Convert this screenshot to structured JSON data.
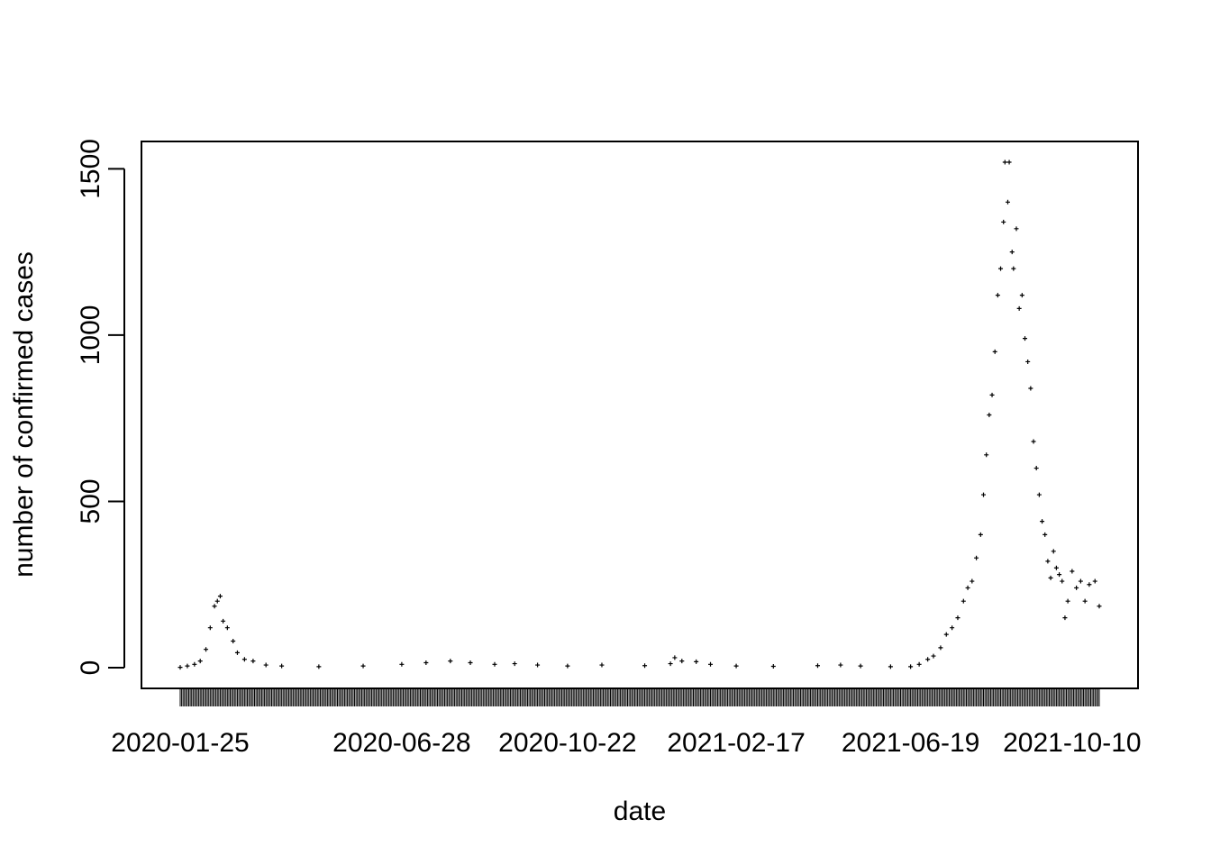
{
  "chart_data": {
    "type": "scatter",
    "title": "",
    "xlabel": "date",
    "ylabel": "number of confirmed cases",
    "x_tick_labels": [
      "2020-01-25",
      "2020-06-28",
      "2020-10-22",
      "2021-02-17",
      "2021-06-19",
      "2021-10-10"
    ],
    "y_ticks": [
      0,
      500,
      1000,
      1500
    ],
    "xlim": [
      "2020-01-25",
      "2021-10-29"
    ],
    "ylim": [
      0,
      1520
    ],
    "grid": false,
    "legend": "none",
    "marker": "+",
    "color": "#000000",
    "series": [
      {
        "points": [
          [
            "2020-01-25",
            1
          ],
          [
            "2020-01-30",
            5
          ],
          [
            "2020-02-04",
            10
          ],
          [
            "2020-02-08",
            20
          ],
          [
            "2020-02-12",
            55
          ],
          [
            "2020-02-15",
            120
          ],
          [
            "2020-02-18",
            185
          ],
          [
            "2020-02-20",
            200
          ],
          [
            "2020-02-22",
            215
          ],
          [
            "2020-02-24",
            140
          ],
          [
            "2020-02-27",
            120
          ],
          [
            "2020-03-02",
            80
          ],
          [
            "2020-03-05",
            45
          ],
          [
            "2020-03-10",
            25
          ],
          [
            "2020-03-16",
            20
          ],
          [
            "2020-03-25",
            8
          ],
          [
            "2020-04-05",
            5
          ],
          [
            "2020-05-01",
            3
          ],
          [
            "2020-06-01",
            5
          ],
          [
            "2020-06-28",
            10
          ],
          [
            "2020-07-15",
            15
          ],
          [
            "2020-08-01",
            20
          ],
          [
            "2020-08-15",
            15
          ],
          [
            "2020-09-01",
            10
          ],
          [
            "2020-09-15",
            12
          ],
          [
            "2020-10-01",
            8
          ],
          [
            "2020-10-22",
            5
          ],
          [
            "2020-11-15",
            8
          ],
          [
            "2020-12-15",
            6
          ],
          [
            "2021-01-02",
            12
          ],
          [
            "2021-01-05",
            30
          ],
          [
            "2021-01-10",
            20
          ],
          [
            "2021-01-20",
            18
          ],
          [
            "2021-01-30",
            10
          ],
          [
            "2021-02-17",
            5
          ],
          [
            "2021-03-15",
            4
          ],
          [
            "2021-04-15",
            6
          ],
          [
            "2021-05-01",
            8
          ],
          [
            "2021-05-15",
            5
          ],
          [
            "2021-06-05",
            3
          ],
          [
            "2021-06-19",
            3
          ],
          [
            "2021-06-25",
            10
          ],
          [
            "2021-07-01",
            25
          ],
          [
            "2021-07-05",
            35
          ],
          [
            "2021-07-10",
            60
          ],
          [
            "2021-07-14",
            100
          ],
          [
            "2021-07-18",
            120
          ],
          [
            "2021-07-22",
            150
          ],
          [
            "2021-07-26",
            200
          ],
          [
            "2021-07-29",
            240
          ],
          [
            "2021-08-01",
            260
          ],
          [
            "2021-08-04",
            330
          ],
          [
            "2021-08-07",
            400
          ],
          [
            "2021-08-09",
            520
          ],
          [
            "2021-08-11",
            640
          ],
          [
            "2021-08-13",
            760
          ],
          [
            "2021-08-15",
            820
          ],
          [
            "2021-08-17",
            950
          ],
          [
            "2021-08-19",
            1120
          ],
          [
            "2021-08-21",
            1200
          ],
          [
            "2021-08-23",
            1340
          ],
          [
            "2021-08-24",
            1520
          ],
          [
            "2021-08-26",
            1400
          ],
          [
            "2021-08-27",
            1520
          ],
          [
            "2021-08-29",
            1250
          ],
          [
            "2021-08-30",
            1200
          ],
          [
            "2021-09-01",
            1320
          ],
          [
            "2021-09-03",
            1080
          ],
          [
            "2021-09-05",
            1120
          ],
          [
            "2021-09-07",
            990
          ],
          [
            "2021-09-09",
            920
          ],
          [
            "2021-09-11",
            840
          ],
          [
            "2021-09-13",
            680
          ],
          [
            "2021-09-15",
            600
          ],
          [
            "2021-09-17",
            520
          ],
          [
            "2021-09-19",
            440
          ],
          [
            "2021-09-21",
            400
          ],
          [
            "2021-09-23",
            320
          ],
          [
            "2021-09-25",
            270
          ],
          [
            "2021-09-27",
            350
          ],
          [
            "2021-09-29",
            300
          ],
          [
            "2021-10-01",
            280
          ],
          [
            "2021-10-03",
            260
          ],
          [
            "2021-10-05",
            150
          ],
          [
            "2021-10-07",
            200
          ],
          [
            "2021-10-10",
            290
          ],
          [
            "2021-10-13",
            240
          ],
          [
            "2021-10-16",
            260
          ],
          [
            "2021-10-19",
            200
          ],
          [
            "2021-10-22",
            250
          ],
          [
            "2021-10-26",
            260
          ],
          [
            "2021-10-29",
            185
          ]
        ]
      }
    ]
  }
}
